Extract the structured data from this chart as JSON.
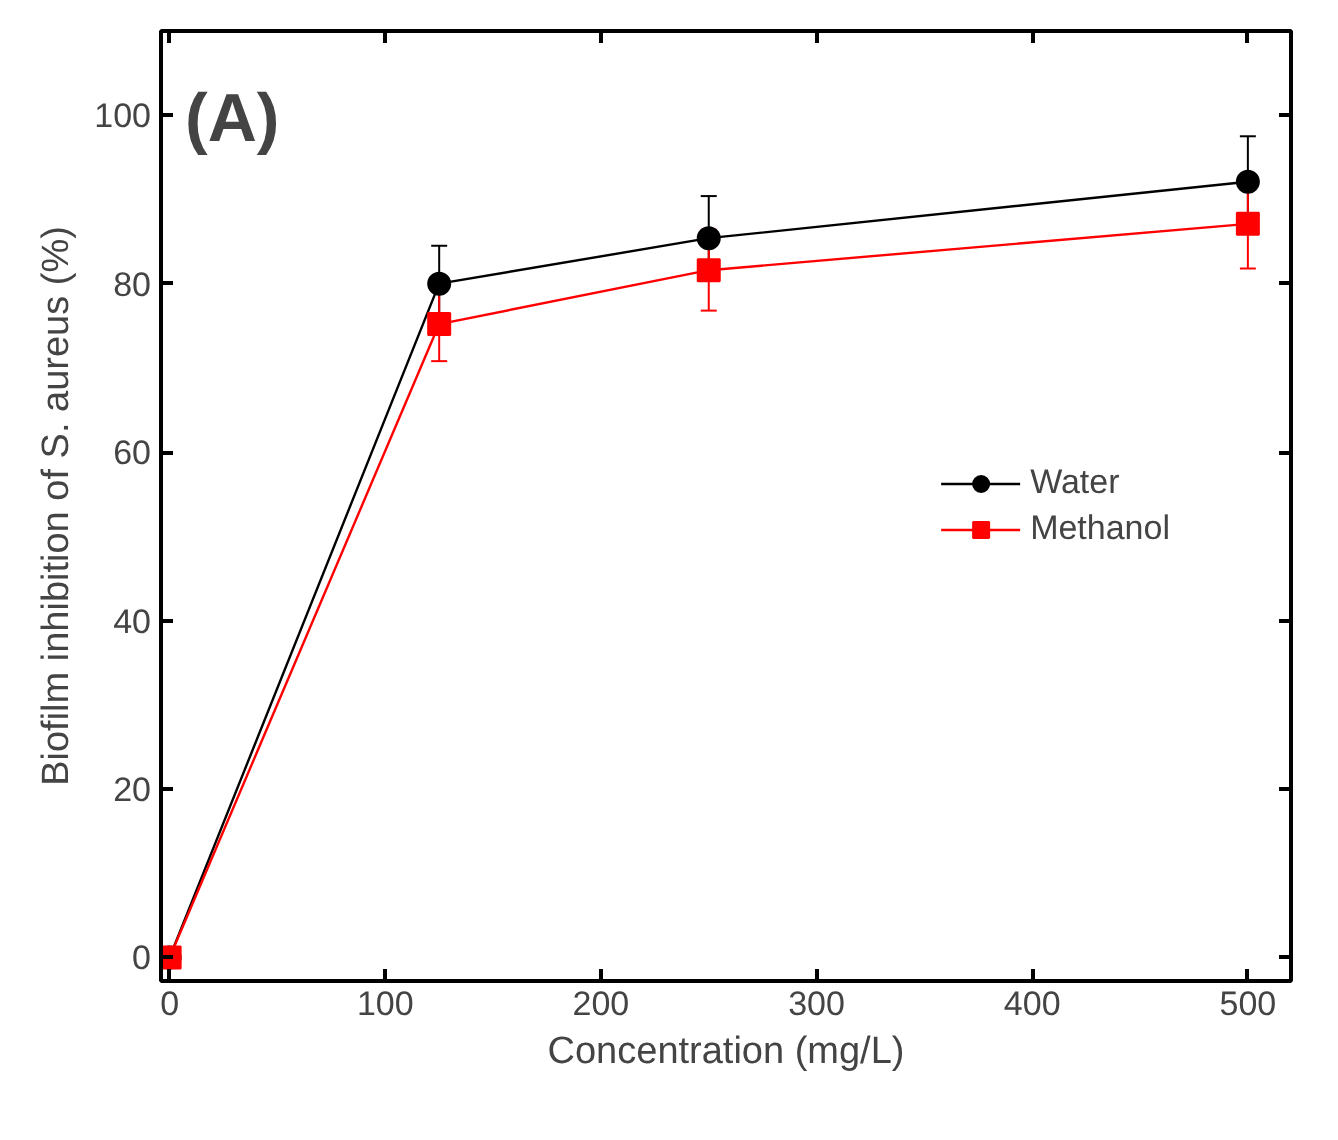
{
  "chart_data": {
    "type": "line",
    "annotations": [
      "(A)"
    ],
    "xlabel": "Concentration (mg/L)",
    "ylabel": "Biofilm inhibition of S. aureus (%)",
    "x": [
      0,
      125,
      250,
      500
    ],
    "series": [
      {
        "name": "Water",
        "color": "#000000",
        "marker": "circle",
        "values": [
          0,
          80,
          85.4,
          92.1
        ],
        "errors": [
          null,
          4.5,
          5,
          5.4
        ]
      },
      {
        "name": "Methanol",
        "color": "#ff0000",
        "marker": "square",
        "values": [
          0,
          75.2,
          81.6,
          87.1
        ],
        "errors": [
          null,
          4.4,
          4.8,
          5.3
        ]
      }
    ],
    "xlim": [
      -4,
      520
    ],
    "ylim": [
      -2.8,
      110
    ],
    "xticks": [
      0,
      100,
      200,
      300,
      400,
      500
    ],
    "yticks": [
      0,
      20,
      40,
      60,
      80,
      100
    ],
    "grid": false,
    "legend": "right",
    "line_style": "solid"
  }
}
